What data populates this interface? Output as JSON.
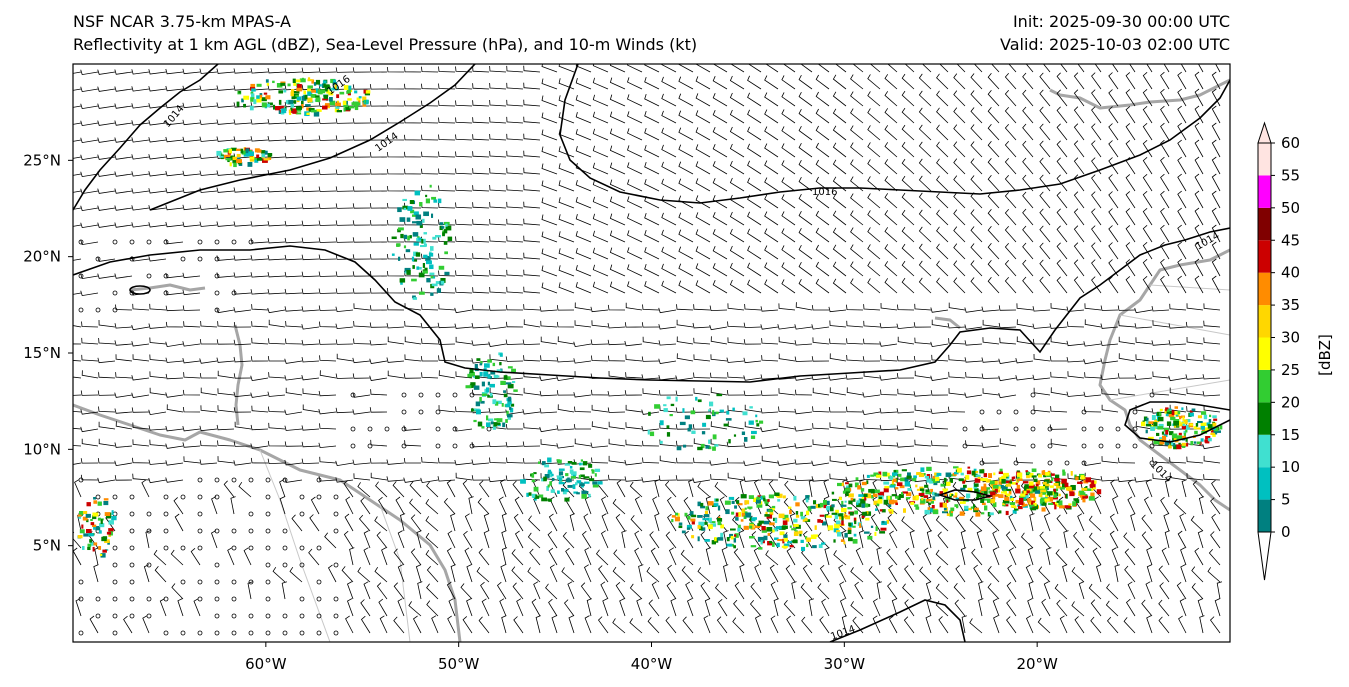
{
  "header": {
    "model_title": "NSF NCAR 3.75-km MPAS-A",
    "field_title": "Reflectivity at 1 km AGL (dBZ), Sea-Level Pressure (hPa), and 10-m Winds (kt)",
    "init": "Init: 2025-09-30 00:00 UTC",
    "valid": "Valid: 2025-10-03 02:00 UTC"
  },
  "map": {
    "lon_range": [
      -70,
      -10
    ],
    "lat_range": [
      0,
      30
    ],
    "lon_ticks": [
      {
        "value": -60,
        "label": "60°W"
      },
      {
        "value": -50,
        "label": "50°W"
      },
      {
        "value": -40,
        "label": "40°W"
      },
      {
        "value": -30,
        "label": "30°W"
      },
      {
        "value": -20,
        "label": "20°W"
      }
    ],
    "lat_ticks": [
      {
        "value": 25,
        "label": "25°N"
      },
      {
        "value": 20,
        "label": "20°N"
      },
      {
        "value": 15,
        "label": "15°N"
      },
      {
        "value": 10,
        "label": "10°N"
      },
      {
        "value": 5,
        "label": "5°N"
      }
    ],
    "isobar_labels": [
      "1014",
      "1016",
      "1014",
      "1016",
      "1014",
      "1014",
      "1014",
      "1016"
    ],
    "colors": {
      "coastline": "#a6a6a6",
      "isobar": "#000000",
      "barb": "#000000"
    }
  },
  "colorbar": {
    "label": "[dBZ]",
    "levels": [
      "0",
      "5",
      "10",
      "15",
      "20",
      "25",
      "30",
      "35",
      "40",
      "45",
      "50",
      "55",
      "60"
    ],
    "colors": [
      "#ffffff",
      "#008080",
      "#00c0c0",
      "#40e0d0",
      "#008000",
      "#32cd32",
      "#ffff00",
      "#ffd700",
      "#ff8c00",
      "#cc0000",
      "#800000",
      "#ff00ff",
      "#ffe4e1"
    ]
  }
}
